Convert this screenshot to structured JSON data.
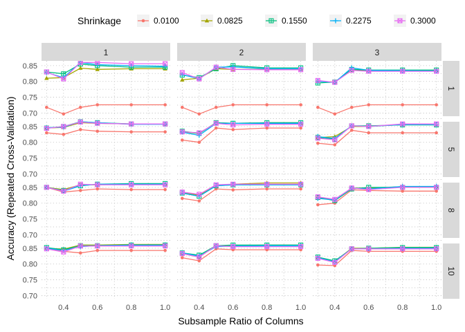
{
  "chart_data": {
    "type": "line",
    "xlabel": "Subsample Ratio of Columns",
    "ylabel": "Accuracy (Repeated Cross-Validation)",
    "legend_title": "Shrinkage",
    "legend_position": "top",
    "column_facets": [
      "1",
      "2",
      "3"
    ],
    "row_facets": [
      "1",
      "5",
      "8",
      "10"
    ],
    "x": [
      0.3,
      0.4,
      0.5,
      0.6,
      0.8,
      1.0
    ],
    "xlim": [
      0.27,
      1.03
    ],
    "ylim": [
      0.69,
      0.865
    ],
    "x_ticks": [
      0.4,
      0.6,
      0.8,
      1.0
    ],
    "x_tick_labels": [
      "0.4",
      "0.6",
      "0.8",
      "1.0"
    ],
    "y_ticks": [
      0.7,
      0.75,
      0.8,
      0.85
    ],
    "y_tick_labels": [
      "0.70",
      "0.75",
      "0.80",
      "0.85"
    ],
    "grid": "dotted",
    "series": [
      {
        "name": "0.0100",
        "color": "#F8766D",
        "marker": "circle"
      },
      {
        "name": "0.0825",
        "color": "#A3A500",
        "marker": "triangle"
      },
      {
        "name": "0.1550",
        "color": "#00BF7D",
        "marker": "square-cross"
      },
      {
        "name": "0.2275",
        "color": "#00B0F6",
        "marker": "plus"
      },
      {
        "name": "0.3000",
        "color": "#E76BF3",
        "marker": "square-x"
      }
    ],
    "panels": [
      {
        "col": "1",
        "row": "1",
        "values": [
          [
            0.718,
            0.697,
            0.718,
            0.726,
            0.726,
            0.726
          ],
          [
            0.81,
            0.812,
            0.842,
            0.838,
            0.84,
            0.84
          ],
          [
            0.83,
            0.824,
            0.855,
            0.85,
            0.845,
            0.845
          ],
          [
            0.828,
            0.812,
            0.86,
            0.853,
            0.85,
            0.848
          ],
          [
            0.83,
            0.808,
            0.86,
            0.86,
            0.856,
            0.856
          ]
        ]
      },
      {
        "col": "2",
        "row": "1",
        "values": [
          [
            0.718,
            0.697,
            0.718,
            0.726,
            0.726,
            0.726
          ],
          [
            0.805,
            0.81,
            0.84,
            0.838,
            0.838,
            0.838
          ],
          [
            0.82,
            0.812,
            0.84,
            0.85,
            0.843,
            0.843
          ],
          [
            0.822,
            0.808,
            0.845,
            0.846,
            0.84,
            0.84
          ],
          [
            0.828,
            0.808,
            0.845,
            0.838,
            0.837,
            0.837
          ]
        ]
      },
      {
        "col": "3",
        "row": "1",
        "values": [
          [
            0.718,
            0.697,
            0.718,
            0.726,
            0.726,
            0.726
          ],
          [
            0.8,
            0.798,
            0.835,
            0.835,
            0.835,
            0.835
          ],
          [
            0.795,
            0.798,
            0.838,
            0.836,
            0.836,
            0.836
          ],
          [
            0.8,
            0.797,
            0.843,
            0.835,
            0.834,
            0.833
          ],
          [
            0.803,
            0.797,
            0.835,
            0.832,
            0.832,
            0.832
          ]
        ]
      },
      {
        "col": "1",
        "row": "5",
        "values": [
          [
            0.83,
            0.825,
            0.84,
            0.835,
            0.833,
            0.833
          ],
          [
            0.845,
            0.847,
            0.862,
            0.86,
            0.858,
            0.858
          ],
          [
            0.845,
            0.85,
            0.865,
            0.862,
            0.858,
            0.858
          ],
          [
            0.846,
            0.848,
            0.865,
            0.862,
            0.857,
            0.857
          ],
          [
            0.844,
            0.85,
            0.864,
            0.86,
            0.858,
            0.858
          ]
        ]
      },
      {
        "col": "2",
        "row": "5",
        "values": [
          [
            0.807,
            0.8,
            0.845,
            0.84,
            0.845,
            0.845
          ],
          [
            0.833,
            0.828,
            0.862,
            0.86,
            0.862,
            0.862
          ],
          [
            0.835,
            0.828,
            0.862,
            0.86,
            0.862,
            0.862
          ],
          [
            0.832,
            0.822,
            0.86,
            0.86,
            0.86,
            0.86
          ],
          [
            0.833,
            0.83,
            0.86,
            0.855,
            0.857,
            0.857
          ]
        ]
      },
      {
        "col": "3",
        "row": "5",
        "values": [
          [
            0.797,
            0.792,
            0.838,
            0.83,
            0.83,
            0.83
          ],
          [
            0.815,
            0.818,
            0.85,
            0.85,
            0.856,
            0.856
          ],
          [
            0.815,
            0.81,
            0.852,
            0.852,
            0.855,
            0.855
          ],
          [
            0.818,
            0.812,
            0.852,
            0.85,
            0.856,
            0.856
          ],
          [
            0.813,
            0.808,
            0.852,
            0.85,
            0.858,
            0.858
          ]
        ]
      },
      {
        "col": "1",
        "row": "8",
        "values": [
          [
            0.85,
            0.835,
            0.84,
            0.845,
            0.843,
            0.843
          ],
          [
            0.85,
            0.843,
            0.858,
            0.858,
            0.86,
            0.86
          ],
          [
            0.85,
            0.84,
            0.855,
            0.86,
            0.862,
            0.862
          ],
          [
            0.85,
            0.838,
            0.855,
            0.86,
            0.86,
            0.86
          ],
          [
            0.85,
            0.838,
            0.86,
            0.858,
            0.858,
            0.858
          ]
        ]
      },
      {
        "col": "2",
        "row": "8",
        "values": [
          [
            0.815,
            0.807,
            0.845,
            0.842,
            0.845,
            0.845
          ],
          [
            0.833,
            0.825,
            0.855,
            0.86,
            0.864,
            0.864
          ],
          [
            0.832,
            0.822,
            0.855,
            0.858,
            0.858,
            0.858
          ],
          [
            0.832,
            0.822,
            0.855,
            0.858,
            0.858,
            0.858
          ],
          [
            0.835,
            0.828,
            0.858,
            0.86,
            0.86,
            0.86
          ]
        ]
      },
      {
        "col": "3",
        "row": "8",
        "values": [
          [
            0.795,
            0.8,
            0.842,
            0.84,
            0.838,
            0.838
          ],
          [
            0.82,
            0.81,
            0.848,
            0.848,
            0.852,
            0.852
          ],
          [
            0.818,
            0.808,
            0.845,
            0.85,
            0.85,
            0.85
          ],
          [
            0.815,
            0.81,
            0.848,
            0.845,
            0.853,
            0.853
          ],
          [
            0.82,
            0.812,
            0.848,
            0.843,
            0.85,
            0.85
          ]
        ]
      },
      {
        "col": "1",
        "row": "10",
        "values": [
          [
            0.85,
            0.84,
            0.835,
            0.843,
            0.843,
            0.843
          ],
          [
            0.85,
            0.847,
            0.86,
            0.86,
            0.862,
            0.862
          ],
          [
            0.852,
            0.845,
            0.858,
            0.858,
            0.86,
            0.86
          ],
          [
            0.85,
            0.843,
            0.855,
            0.858,
            0.86,
            0.86
          ],
          [
            0.848,
            0.838,
            0.857,
            0.857,
            0.857,
            0.857
          ]
        ]
      },
      {
        "col": "2",
        "row": "10",
        "values": [
          [
            0.82,
            0.81,
            0.848,
            0.845,
            0.845,
            0.845
          ],
          [
            0.833,
            0.822,
            0.858,
            0.858,
            0.86,
            0.86
          ],
          [
            0.835,
            0.828,
            0.858,
            0.86,
            0.86,
            0.86
          ],
          [
            0.835,
            0.825,
            0.855,
            0.857,
            0.858,
            0.858
          ],
          [
            0.833,
            0.822,
            0.858,
            0.855,
            0.855,
            0.855
          ]
        ]
      },
      {
        "col": "3",
        "row": "10",
        "values": [
          [
            0.797,
            0.795,
            0.843,
            0.84,
            0.84,
            0.84
          ],
          [
            0.82,
            0.808,
            0.85,
            0.85,
            0.853,
            0.853
          ],
          [
            0.822,
            0.81,
            0.848,
            0.85,
            0.852,
            0.852
          ],
          [
            0.82,
            0.807,
            0.848,
            0.848,
            0.85,
            0.85
          ],
          [
            0.818,
            0.805,
            0.848,
            0.848,
            0.848,
            0.848
          ]
        ]
      }
    ]
  }
}
